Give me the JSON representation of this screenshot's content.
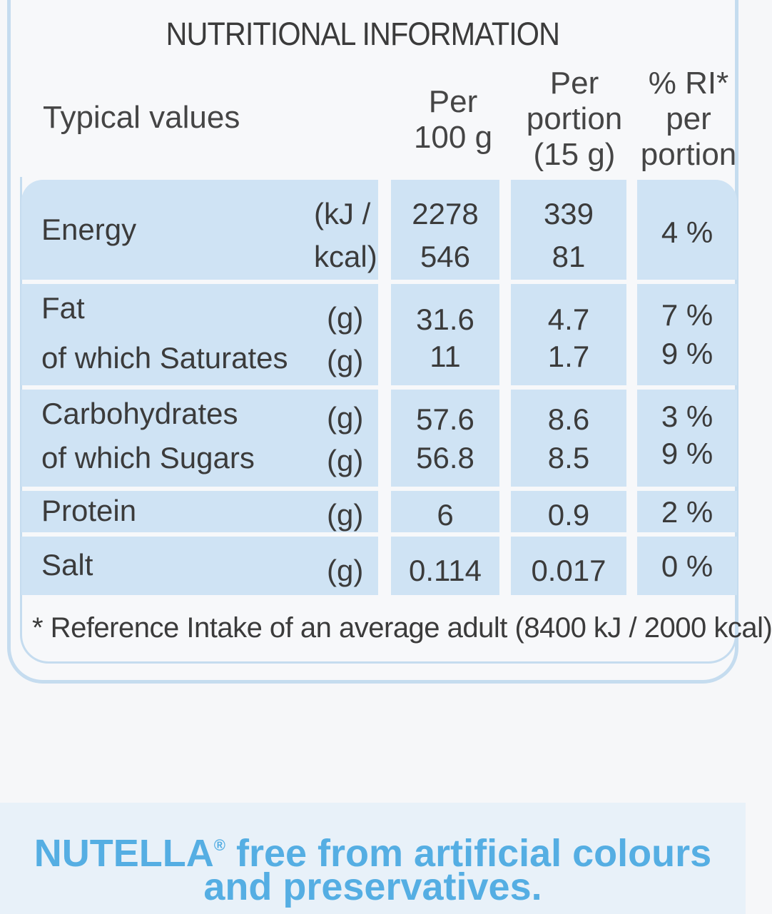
{
  "title": "NUTRITIONAL INFORMATION",
  "headers": {
    "typical": "Typical values",
    "per100_1": "Per",
    "per100_2": "100 g",
    "portion_1": "Per",
    "portion_2": "portion",
    "portion_3": "(15 g)",
    "ri_1": "% RI*",
    "ri_2": "per",
    "ri_3": "portion"
  },
  "rows": {
    "energy": {
      "label": "Energy",
      "unit1": "(kJ /",
      "unit2": "kcal)",
      "per100_1": "2278",
      "per100_2": "546",
      "portion_1": "339",
      "portion_2": "81",
      "ri": "4 %"
    },
    "fat": {
      "label": "Fat",
      "unit": "(g)",
      "per100": "31.6",
      "portion": "4.7",
      "ri": "7 %"
    },
    "saturates": {
      "label": "of which Saturates",
      "unit": "(g)",
      "per100": "11",
      "portion": "1.7",
      "ri": "9 %"
    },
    "carbs": {
      "label": "Carbohydrates",
      "unit": "(g)",
      "per100": "57.6",
      "portion": "8.6",
      "ri": "3 %"
    },
    "sugars": {
      "label": "of which Sugars",
      "unit": "(g)",
      "per100": "56.8",
      "portion": "8.5",
      "ri": "9 %"
    },
    "protein": {
      "label": "Protein",
      "unit": "(g)",
      "per100": "6",
      "portion": "0.9",
      "ri": "2 %"
    },
    "salt": {
      "label": "Salt",
      "unit": "(g)",
      "per100": "0.114",
      "portion": "0.017",
      "ri": "0 %"
    }
  },
  "footnote": "* Reference Intake of an average adult (8400 kJ / 2000 kcal)",
  "banner": {
    "brand": "NUTELLA",
    "reg": "®",
    "line1_rest": " free from artificial colours",
    "line2": "and preservatives."
  },
  "colors": {
    "cell_blue": "#cfe3f4",
    "border_blue": "#c5dcef",
    "banner_text": "#55aee3"
  }
}
